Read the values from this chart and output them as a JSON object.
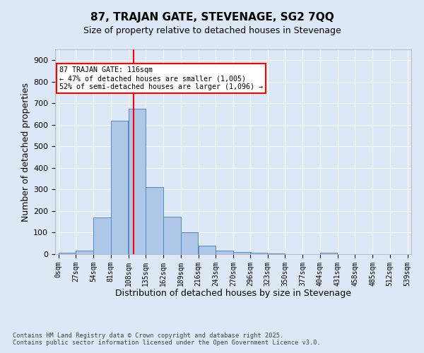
{
  "title": "87, TRAJAN GATE, STEVENAGE, SG2 7QQ",
  "subtitle": "Size of property relative to detached houses in Stevenage",
  "xlabel": "Distribution of detached houses by size in Stevenage",
  "ylabel": "Number of detached properties",
  "bar_color": "#aec6e8",
  "bar_edge_color": "#5588bb",
  "background_color": "#dce8f5",
  "grid_color": "#ffffff",
  "vline_x": 116,
  "vline_color": "red",
  "bin_edges": [
    0,
    27,
    54,
    81,
    108,
    135,
    162,
    189,
    216,
    243,
    270,
    296,
    323,
    350,
    377,
    404,
    431,
    458,
    485,
    512,
    539
  ],
  "bin_labels": [
    "0sqm",
    "27sqm",
    "54sqm",
    "81sqm",
    "108sqm",
    "135sqm",
    "162sqm",
    "189sqm",
    "216sqm",
    "243sqm",
    "270sqm",
    "296sqm",
    "323sqm",
    "350sqm",
    "377sqm",
    "404sqm",
    "431sqm",
    "458sqm",
    "485sqm",
    "512sqm",
    "539sqm"
  ],
  "counts": [
    7,
    15,
    170,
    620,
    675,
    310,
    175,
    100,
    40,
    15,
    10,
    5,
    3,
    1,
    0,
    5,
    0,
    0,
    0,
    0
  ],
  "annotation_text": "87 TRAJAN GATE: 116sqm\n← 47% of detached houses are smaller (1,005)\n52% of semi-detached houses are larger (1,096) →",
  "annotation_box_color": "white",
  "annotation_box_edge_color": "red",
  "footer_text": "Contains HM Land Registry data © Crown copyright and database right 2025.\nContains public sector information licensed under the Open Government Licence v3.0.",
  "ylim": [
    0,
    950
  ],
  "yticks": [
    0,
    100,
    200,
    300,
    400,
    500,
    600,
    700,
    800,
    900
  ]
}
